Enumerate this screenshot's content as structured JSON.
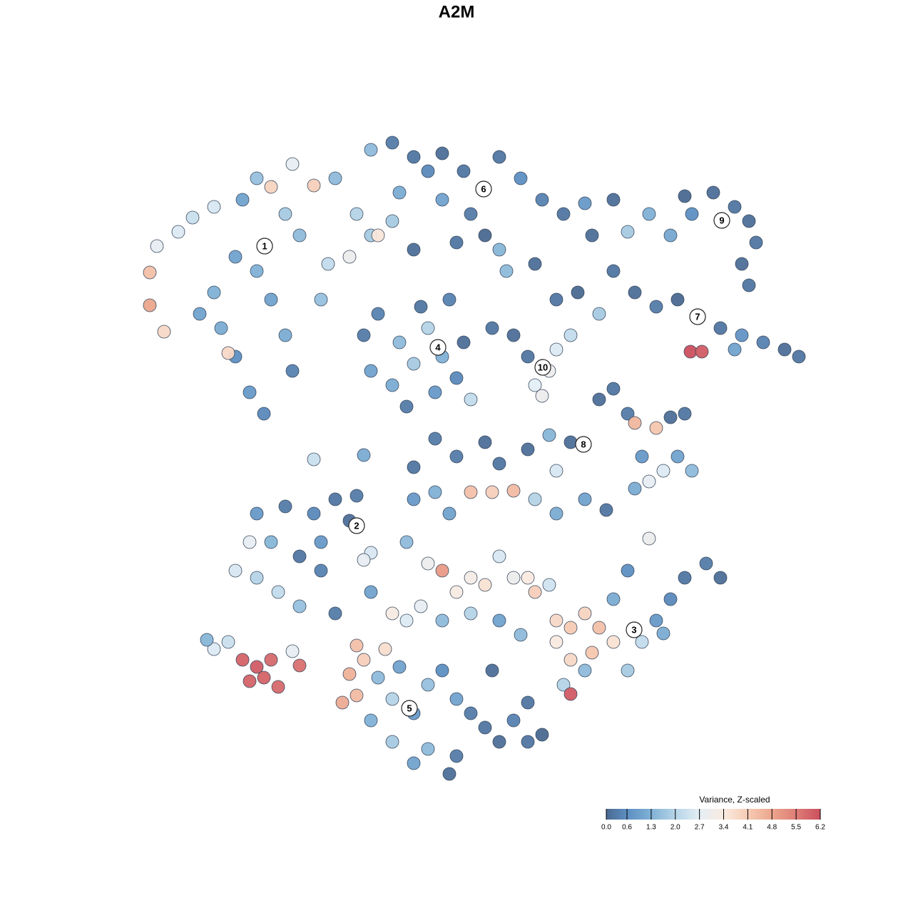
{
  "chart_data": {
    "type": "scatter",
    "title": "A2M",
    "xlim": [
      19,
      114
    ],
    "ylim": [
      18,
      110
    ],
    "x": [
      22,
      21,
      21,
      23,
      25,
      27,
      30,
      33,
      36,
      40,
      42,
      38,
      31,
      33,
      35,
      37,
      41,
      40,
      45,
      46,
      44,
      38,
      36,
      41,
      47,
      50,
      52,
      49,
      30,
      28,
      32,
      34,
      52,
      55,
      58,
      60,
      62,
      65,
      68,
      70,
      73,
      76,
      79,
      82,
      83,
      66,
      62,
      56,
      55,
      53,
      58,
      64,
      70,
      71,
      75,
      68,
      88,
      91,
      94,
      97,
      100,
      103,
      105,
      106,
      104,
      105,
      96,
      86,
      86,
      89,
      92,
      95,
      98,
      101,
      104,
      107,
      110,
      112,
      96.8,
      98.4,
      103,
      84,
      81,
      78,
      51,
      53,
      56,
      58,
      60,
      62,
      64,
      61,
      55,
      52,
      57,
      65,
      59,
      63,
      75,
      77,
      78,
      80,
      76,
      74,
      72,
      69,
      84,
      86,
      88,
      92,
      89,
      94,
      96,
      90,
      93,
      95,
      97,
      89,
      91,
      80,
      77,
      74,
      70,
      68,
      64,
      78,
      44,
      51,
      58,
      61,
      66,
      36,
      40,
      44,
      47,
      50,
      49,
      45,
      42,
      38,
      35,
      33,
      36,
      39,
      42,
      45,
      52,
      51,
      30,
      32,
      34,
      36,
      38,
      35,
      37,
      39,
      42,
      41,
      29,
      48,
      49,
      50,
      51,
      50,
      54,
      53,
      56,
      55,
      58,
      60,
      62,
      64,
      66,
      68,
      70,
      72,
      64,
      60,
      58,
      55,
      52,
      63,
      74,
      76,
      74,
      69,
      58,
      61,
      63,
      66,
      69,
      72,
      75,
      78,
      82,
      85,
      57,
      60,
      62,
      64,
      66,
      68,
      70,
      72,
      74,
      75,
      77,
      55,
      57,
      59,
      62,
      66,
      70,
      73,
      78,
      80,
      82,
      84,
      86,
      83,
      80,
      78,
      82,
      79,
      80,
      88,
      90,
      92,
      94,
      96,
      99,
      101,
      93,
      88,
      91,
      86,
      52,
      47
    ],
    "y": [
      93.5,
      89.8,
      85.2,
      81.5,
      95.5,
      97.5,
      99,
      92,
      90,
      98,
      95,
      86,
      82,
      78,
      73,
      70,
      76,
      81,
      86,
      91,
      102,
      101.8,
      103,
      105,
      103,
      98,
      95,
      92,
      87,
      84,
      78.5,
      100,
      107,
      108,
      106,
      104,
      106.5,
      104,
      101.5,
      106,
      103,
      100,
      98,
      99.5,
      95,
      98,
      100,
      101,
      97,
      95,
      93,
      94,
      93,
      90,
      91,
      95,
      95.5,
      98,
      95,
      98,
      101,
      99,
      97,
      94,
      91,
      88,
      100.5,
      100,
      90,
      87,
      85,
      86,
      83.5,
      82,
      81,
      80,
      79,
      78,
      78.7,
      78.7,
      79,
      84,
      87,
      86,
      81,
      84,
      80,
      77,
      82,
      78,
      75,
      73,
      74,
      76,
      71,
      80,
      85,
      86,
      74,
      76,
      79,
      81,
      72.5,
      78,
      81,
      82,
      72,
      73.5,
      70,
      68,
      68.7,
      69.5,
      70,
      64,
      62,
      64,
      62,
      59.5,
      60.5,
      66,
      67,
      65,
      63,
      66,
      64,
      62,
      63.6,
      64.2,
      62.5,
      66.5,
      72,
      56,
      57,
      56,
      58,
      58.5,
      55,
      52,
      50,
      52,
      52,
      48,
      47,
      45,
      43,
      48,
      50.5,
      49.5,
      37,
      38,
      35.5,
      34.5,
      35.5,
      32.5,
      33,
      31.7,
      34.7,
      36.7,
      38.3,
      29.5,
      33.5,
      37.5,
      35.5,
      30.5,
      37,
      33,
      34.5,
      30,
      28,
      32,
      34,
      30,
      28,
      26,
      24,
      27,
      22,
      23,
      21,
      24,
      27,
      19.5,
      24,
      25,
      29.5,
      34,
      58,
      59,
      56,
      59,
      59,
      59.2,
      58,
      56,
      58,
      56.5,
      52,
      49,
      48,
      45,
      47,
      46,
      50,
      47,
      47,
      45,
      46,
      42,
      41,
      43,
      41,
      42,
      41,
      39,
      41,
      40,
      42,
      40,
      38,
      36.5,
      35.5,
      38,
      34,
      32,
      30.7,
      34,
      38,
      41,
      44,
      47,
      49,
      47,
      39.2,
      48,
      52.5,
      44,
      45,
      42
    ],
    "values": [
      2.8,
      4.3,
      4.8,
      3.8,
      2.6,
      2.3,
      2.5,
      1.0,
      1.3,
      1.8,
      1.5,
      1.0,
      1.2,
      0.6,
      0.8,
      0.5,
      0.4,
      1.2,
      1.6,
      2.2,
      4.0,
      3.9,
      1.6,
      2.8,
      1.5,
      2.0,
      1.8,
      3.0,
      1.3,
      1.0,
      3.8,
      1.0,
      1.5,
      0.3,
      0.2,
      0.5,
      0.1,
      0.2,
      0.1,
      0.2,
      0.6,
      0.4,
      0.2,
      0.8,
      0.1,
      0.3,
      1.0,
      1.2,
      1.8,
      3.5,
      0.1,
      0.2,
      1.4,
      1.5,
      0.1,
      0.0,
      1.8,
      1.3,
      1.1,
      0.6,
      0.1,
      0.2,
      0.1,
      0.2,
      0.1,
      0.2,
      0.0,
      0.1,
      0.2,
      0.1,
      0.3,
      0.0,
      0.5,
      0.2,
      0.7,
      0.4,
      0.1,
      0.2,
      6.2,
      6.0,
      1.0,
      1.8,
      0.0,
      0.2,
      0.3,
      0.4,
      1.5,
      1.8,
      2.0,
      1.3,
      0.5,
      0.8,
      1.2,
      1.0,
      0.3,
      0.1,
      0.2,
      0.4,
      2.7,
      3.0,
      2.6,
      2.2,
      3.0,
      0.2,
      0.1,
      0.2,
      0.1,
      0.2,
      0.3,
      4.2,
      4.5,
      0.1,
      0.2,
      0.8,
      2.6,
      1.0,
      1.5,
      1.2,
      2.8,
      0.1,
      1.4,
      0.1,
      0.2,
      0.1,
      0.3,
      2.5,
      2.3,
      1.2,
      0.2,
      0.3,
      2.2,
      0.8,
      0.3,
      0.5,
      0.2,
      0.3,
      0.1,
      0.8,
      0.2,
      1.4,
      2.8,
      2.5,
      2.0,
      2.2,
      1.6,
      0.4,
      2.5,
      2.8,
      2.6,
      2.3,
      5.9,
      6.0,
      5.8,
      5.9,
      5.9,
      5.8,
      5.7,
      2.8,
      1.4,
      4.7,
      4.6,
      4.3,
      4.0,
      4.4,
      3.7,
      1.5,
      1.0,
      2.0,
      0.8,
      1.6,
      0.6,
      1.0,
      0.3,
      0.2,
      0.1,
      0.4,
      0.3,
      1.5,
      1.0,
      1.8,
      1.3,
      0.1,
      0.2,
      0.0,
      0.2,
      0.1,
      0.8,
      1.3,
      1.0,
      4.3,
      4.0,
      4.4,
      2.0,
      1.2,
      1.0,
      0.2,
      1.5,
      3.0,
      5.0,
      3.3,
      3.2,
      3.6,
      2.5,
      3.0,
      3.4,
      4.0,
      2.4,
      3.3,
      2.6,
      2.8,
      1.5,
      2.0,
      1.0,
      1.5,
      3.8,
      4.1,
      3.9,
      4.3,
      3.6,
      4.2,
      3.8,
      3.4,
      1.5,
      2.0,
      6.0,
      1.8,
      2.2,
      0.8,
      0.5,
      0.2,
      0.3,
      0.1,
      1.2,
      0.6,
      3.0,
      1.2,
      1.0,
      0.3
    ],
    "cluster_labels": [
      {
        "text": "1",
        "x": 37.1,
        "y": 93.5
      },
      {
        "text": "2",
        "x": 50.0,
        "y": 54.3
      },
      {
        "text": "3",
        "x": 88.9,
        "y": 39.7
      },
      {
        "text": "4",
        "x": 61.4,
        "y": 79.3
      },
      {
        "text": "5",
        "x": 57.4,
        "y": 28.7
      },
      {
        "text": "6",
        "x": 67.8,
        "y": 101.5
      },
      {
        "text": "7",
        "x": 97.8,
        "y": 83.6
      },
      {
        "text": "8",
        "x": 81.8,
        "y": 65.7
      },
      {
        "text": "9",
        "x": 101.2,
        "y": 97.1
      },
      {
        "text": "10",
        "x": 76.1,
        "y": 76.5
      }
    ],
    "colorbar_title": "Variance, Z-scaled",
    "clim": [
      0,
      6.2
    ],
    "colorbar_ticks": [
      {
        "value": 0,
        "label": "0.0"
      },
      0.6,
      1.3,
      {
        "value": 2,
        "label": "2.0"
      },
      2.7,
      3.4,
      4.1,
      4.8,
      5.5,
      6.2
    ],
    "colors": [
      "#4a6990",
      "#5d8fc2",
      "#80b1d6",
      "#b5d4e7",
      "#e4eef5",
      "#faeae0",
      "#f6cbb4",
      "#eca68d",
      "#de7d76",
      "#cc4f5e"
    ]
  }
}
